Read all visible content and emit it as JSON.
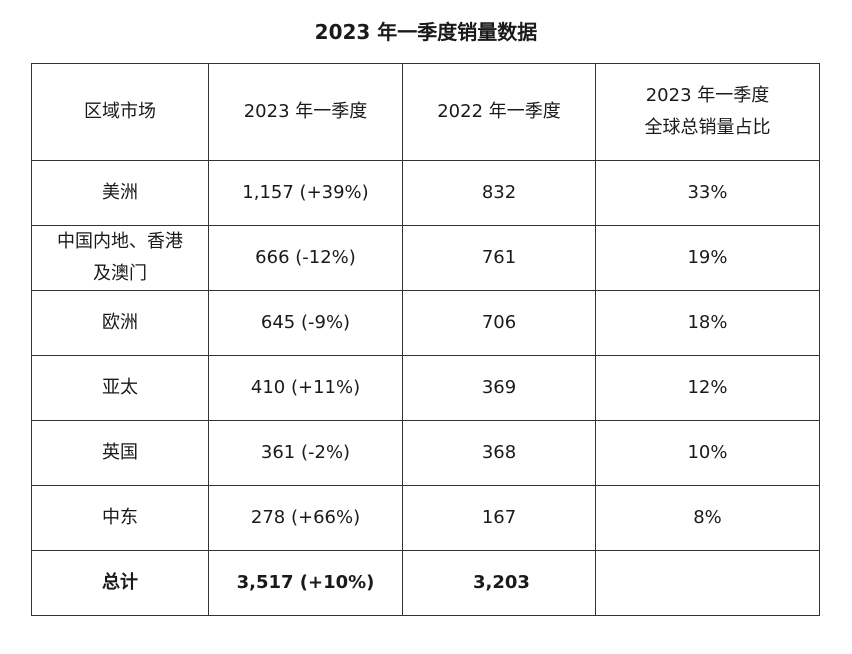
{
  "title": "2023 年一季度销量数据",
  "headers": {
    "region": "区域市场",
    "q1_2023": "2023 年一季度",
    "q1_2022": "2022 年一季度",
    "share_line1": "2023 年一季度",
    "share_line2": "全球总销量占比"
  },
  "rows": [
    {
      "region": "美洲",
      "q1_2023": "1,157 (+39%)",
      "q1_2022": "832",
      "share": "33%"
    },
    {
      "region_line1": "中国内地、香港",
      "region_line2": "及澳门",
      "q1_2023": "666 (-12%)",
      "q1_2022": "761",
      "share": "19%"
    },
    {
      "region": "欧洲",
      "q1_2023": "645 (-9%)",
      "q1_2022": "706",
      "share": "18%"
    },
    {
      "region": "亚太",
      "q1_2023": "410 (+11%)",
      "q1_2022": "369",
      "share": "12%"
    },
    {
      "region": "英国",
      "q1_2023": "361 (-2%)",
      "q1_2022": "368",
      "share": "10%"
    },
    {
      "region": "中东",
      "q1_2023": "278 (+66%)",
      "q1_2022": "167",
      "share": "8%"
    }
  ],
  "total": {
    "region": "总计",
    "q1_2023": "3,517 (+10%)",
    "q1_2022": "3,203",
    "share": ""
  }
}
